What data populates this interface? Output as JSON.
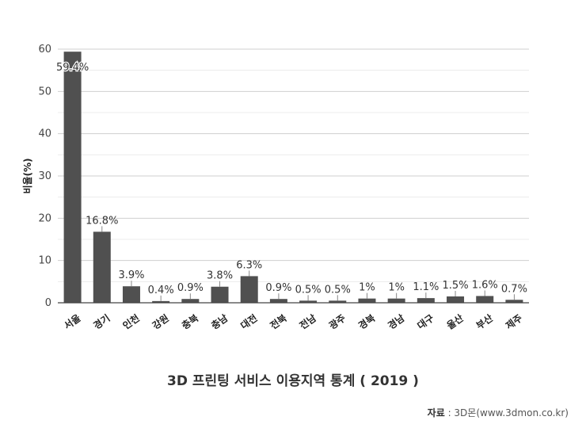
{
  "chart_data": {
    "type": "bar",
    "categories": [
      "서울",
      "경기",
      "인천",
      "강원",
      "충북",
      "충남",
      "대전",
      "전북",
      "전남",
      "광주",
      "경북",
      "경남",
      "대구",
      "울산",
      "부산",
      "제주"
    ],
    "values": [
      59.4,
      16.8,
      3.9,
      0.4,
      0.9,
      3.8,
      6.3,
      0.9,
      0.5,
      0.5,
      1,
      1,
      1.1,
      1.5,
      1.6,
      0.7
    ],
    "data_labels": [
      "59.4%",
      "16.8%",
      "3.9%",
      "0.4%",
      "0.9%",
      "3.8%",
      "6.3%",
      "0.9%",
      "0.5%",
      "0.5%",
      "1%",
      "1%",
      "1.1%",
      "1.5%",
      "1.6%",
      "0.7%"
    ],
    "yticks": [
      "0",
      "10",
      "20",
      "30",
      "40",
      "50",
      "60"
    ],
    "ylabel": "비율(%)",
    "xlabel": "",
    "ylim": [
      0,
      60
    ],
    "grid": true,
    "bar_color": "#505050",
    "title": "3D 프린팅 서비스 이용지역 통계 ( 2019 )"
  },
  "source": {
    "label": "자료",
    "separator": " : ",
    "text": "3D몬(www.3dmon.co.kr)"
  }
}
